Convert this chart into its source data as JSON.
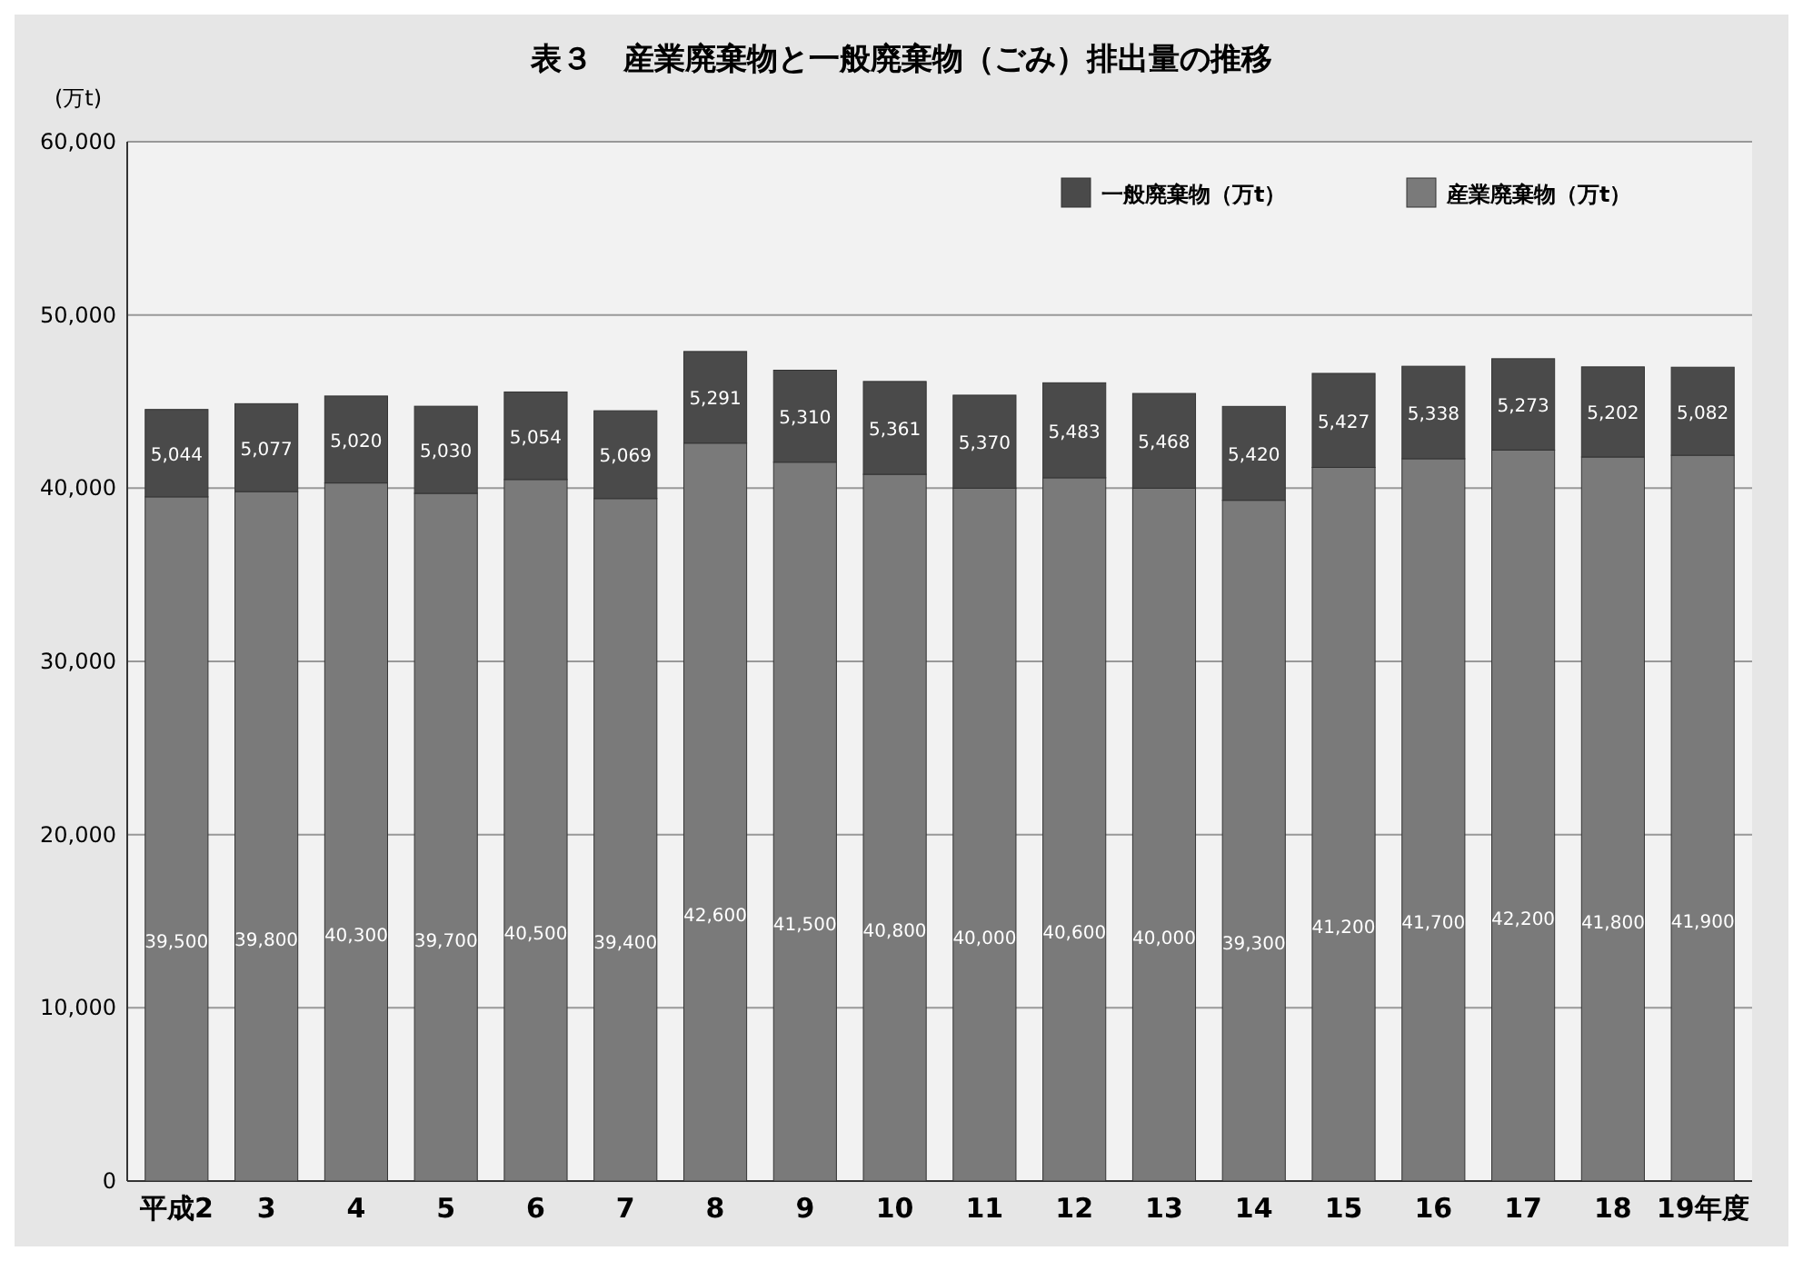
{
  "chart_data": {
    "type": "bar",
    "stacked": true,
    "title": "表３　産業廃棄物と一般廃棄物（ごみ）排出量の推移",
    "ylabel": "(万t)",
    "categories": [
      "平成2",
      "3",
      "4",
      "5",
      "6",
      "7",
      "8",
      "9",
      "10",
      "11",
      "12",
      "13",
      "14",
      "15",
      "16",
      "17",
      "18",
      "19年度"
    ],
    "series": [
      {
        "name": "産業廃棄物（万t）",
        "color": "#7a7a7a",
        "values": [
          39500,
          39800,
          40300,
          39700,
          40500,
          39400,
          42600,
          41500,
          40800,
          40000,
          40600,
          40000,
          39300,
          41200,
          41700,
          42200,
          41800,
          41900
        ],
        "value_labels": [
          "39,500",
          "39,800",
          "40,300",
          "39,700",
          "40,500",
          "39,400",
          "42,600",
          "41,500",
          "40,800",
          "40,000",
          "40,600",
          "40,000",
          "39,300",
          "41,200",
          "41,700",
          "42,200",
          "41,800",
          "41,900"
        ]
      },
      {
        "name": "一般廃棄物（万t）",
        "color": "#4a4a4a",
        "values": [
          5044,
          5077,
          5020,
          5030,
          5054,
          5069,
          5291,
          5310,
          5361,
          5370,
          5483,
          5468,
          5420,
          5427,
          5338,
          5273,
          5202,
          5082
        ],
        "value_labels": [
          "5,044",
          "5,077",
          "5,020",
          "5,030",
          "5,054",
          "5,069",
          "5,291",
          "5,310",
          "5,361",
          "5,370",
          "5,483",
          "5,468",
          "5,420",
          "5,427",
          "5,338",
          "5,273",
          "5,202",
          "5,082"
        ]
      }
    ],
    "ylim": [
      0,
      60000
    ],
    "yticks": [
      0,
      {
        "value": 10000,
        "label": "10,000"
      },
      {
        "value": 20000,
        "label": "20,000"
      },
      {
        "value": 30000,
        "label": "30,000"
      },
      {
        "value": 40000,
        "label": "40,000"
      },
      {
        "value": 50000,
        "label": "50,000"
      },
      {
        "value": 60000,
        "label": "60,000"
      }
    ],
    "grid": "y",
    "legend": "top right"
  }
}
